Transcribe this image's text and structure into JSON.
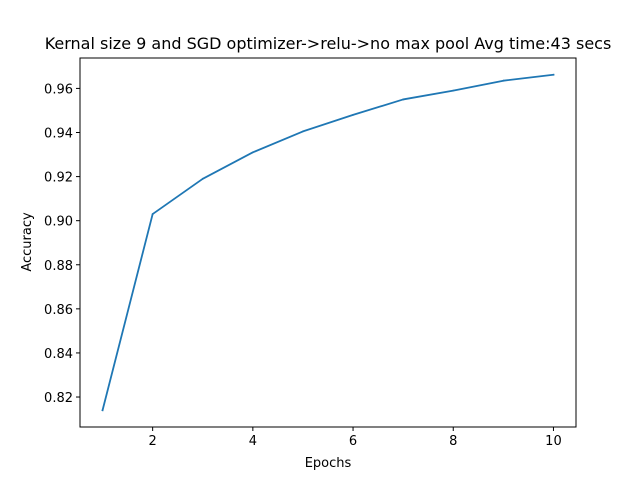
{
  "chart_data": {
    "type": "line",
    "title": "Kernal size 9 and SGD optimizer->relu->no max pool Avg time:43 secs",
    "xlabel": "Epochs",
    "ylabel": "Accuracy",
    "x": [
      1,
      2,
      3,
      4,
      5,
      6,
      7,
      8,
      9,
      10
    ],
    "series": [
      {
        "values": [
          0.814,
          0.903,
          0.919,
          0.931,
          0.9405,
          0.948,
          0.955,
          0.959,
          0.9635,
          0.9662
        ],
        "color": "#1f77b4"
      }
    ],
    "xlim": [
      0.55,
      10.45
    ],
    "ylim": [
      0.8064,
      0.9738
    ],
    "xticks": [
      2,
      4,
      6,
      8,
      10
    ],
    "xtick_labels": [
      "2",
      "4",
      "6",
      "8",
      "10"
    ],
    "yticks": [
      0.82,
      0.84,
      0.86,
      0.88,
      0.9,
      0.92,
      0.94,
      0.96
    ],
    "ytick_labels": [
      "0.82",
      "0.84",
      "0.86",
      "0.88",
      "0.90",
      "0.92",
      "0.94",
      "0.96"
    ],
    "grid": false,
    "legend": "none"
  }
}
